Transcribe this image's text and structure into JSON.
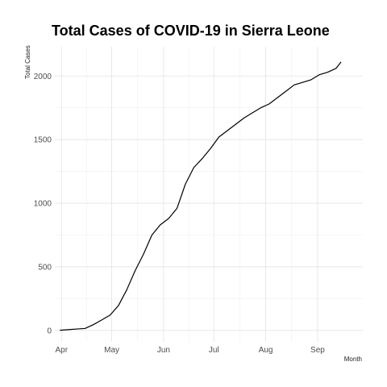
{
  "chart_data": {
    "type": "line",
    "title": "Total Cases of COVID-19 in Sierra Leone",
    "xlabel": "Month",
    "ylabel": "Total Cases",
    "ylim": [
      -90,
      2230
    ],
    "xlim": [
      "2020-03-28",
      "2020-09-28"
    ],
    "y_ticks": [
      0,
      500,
      1000,
      1500,
      2000
    ],
    "x_ticks": [
      {
        "date": "2020-04-01",
        "label": "Apr"
      },
      {
        "date": "2020-05-01",
        "label": "May"
      },
      {
        "date": "2020-06-01",
        "label": "Jun"
      },
      {
        "date": "2020-07-01",
        "label": "Jul"
      },
      {
        "date": "2020-08-01",
        "label": "Aug"
      },
      {
        "date": "2020-09-01",
        "label": "Sep"
      }
    ],
    "grid": true,
    "legend": "none",
    "series": [
      {
        "color": "#000000",
        "x": [
          "2020-03-31",
          "2020-04-05",
          "2020-04-10",
          "2020-04-15",
          "2020-04-20",
          "2020-04-25",
          "2020-04-30",
          "2020-05-05",
          "2020-05-10",
          "2020-05-15",
          "2020-05-20",
          "2020-05-25",
          "2020-05-30",
          "2020-06-04",
          "2020-06-09",
          "2020-06-14",
          "2020-06-19",
          "2020-06-24",
          "2020-06-29",
          "2020-07-04",
          "2020-07-09",
          "2020-07-14",
          "2020-07-19",
          "2020-07-24",
          "2020-07-29",
          "2020-08-03",
          "2020-08-08",
          "2020-08-13",
          "2020-08-18",
          "2020-08-23",
          "2020-08-28",
          "2020-09-02",
          "2020-09-07",
          "2020-09-12",
          "2020-09-15"
        ],
        "y": [
          1,
          6,
          11,
          15,
          45,
          82,
          120,
          195,
          320,
          470,
          600,
          750,
          830,
          880,
          960,
          1150,
          1280,
          1350,
          1430,
          1520,
          1570,
          1620,
          1670,
          1710,
          1750,
          1780,
          1830,
          1880,
          1930,
          1950,
          1970,
          2010,
          2030,
          2060,
          2110
        ]
      }
    ]
  }
}
